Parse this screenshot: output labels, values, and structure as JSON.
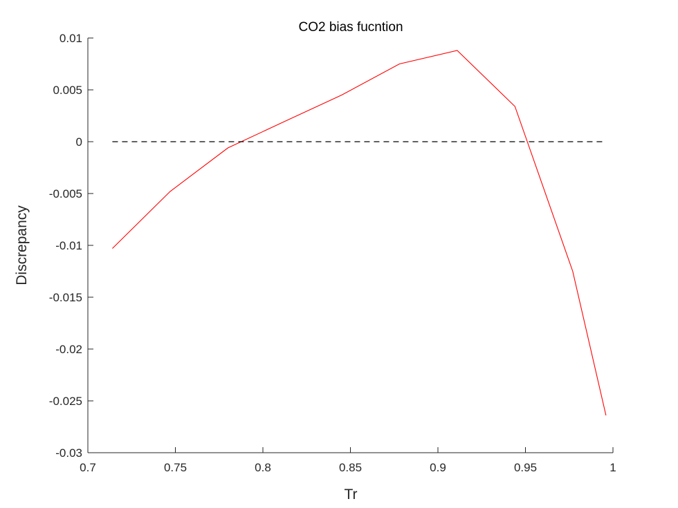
{
  "chart_data": {
    "type": "line",
    "title": "CO2 bias fucntion",
    "xlabel": "Tr",
    "ylabel": "Discrepancy",
    "xlim": [
      0.7,
      1.0
    ],
    "ylim": [
      -0.03,
      0.01
    ],
    "grid": false,
    "x_ticks": [
      {
        "value": 0.7,
        "label": "0.7"
      },
      {
        "value": 0.75,
        "label": "0.75"
      },
      {
        "value": 0.8,
        "label": "0.8"
      },
      {
        "value": 0.85,
        "label": "0.85"
      },
      {
        "value": 0.9,
        "label": "0.9"
      },
      {
        "value": 0.95,
        "label": "0.95"
      },
      {
        "value": 1.0,
        "label": "1"
      }
    ],
    "y_ticks": [
      {
        "value": 0.01,
        "label": "0.01"
      },
      {
        "value": 0.005,
        "label": "0.005"
      },
      {
        "value": 0.0,
        "label": "0"
      },
      {
        "value": -0.005,
        "label": "-0.005"
      },
      {
        "value": -0.01,
        "label": "-0.01"
      },
      {
        "value": -0.015,
        "label": "-0.015"
      },
      {
        "value": -0.02,
        "label": "-0.02"
      },
      {
        "value": -0.025,
        "label": "-0.025"
      },
      {
        "value": -0.03,
        "label": "-0.03"
      }
    ],
    "series": [
      {
        "color": "#ff0000",
        "style": "solid",
        "x": [
          0.714,
          0.747,
          0.78,
          0.813,
          0.845,
          0.878,
          0.911,
          0.944,
          0.977,
          0.996
        ],
        "y": [
          -0.0103,
          -0.0048,
          -0.0006,
          0.002,
          0.0045,
          0.0075,
          0.0088,
          0.0034,
          -0.0125,
          -0.0264
        ]
      },
      {
        "color": "#000000",
        "style": "dashed",
        "x": [
          0.714,
          0.996
        ],
        "y": [
          0,
          0
        ]
      }
    ]
  }
}
